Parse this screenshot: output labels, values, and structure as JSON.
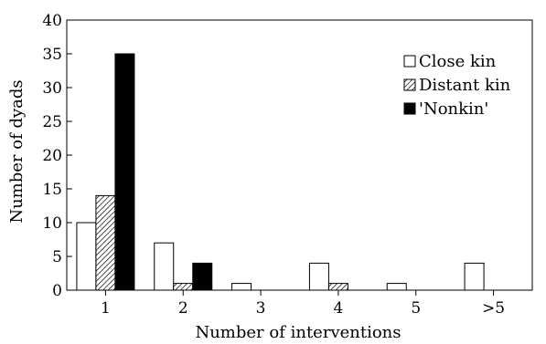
{
  "chart_data": {
    "type": "bar",
    "xlabel": "Number of interventions",
    "ylabel": "Number of dyads",
    "ylim": [
      0,
      40
    ],
    "yticks": [
      0,
      5,
      10,
      15,
      20,
      25,
      30,
      35,
      40
    ],
    "categories": [
      "1",
      "2",
      "3",
      "4",
      "5",
      ">5"
    ],
    "series": [
      {
        "name": "Close kin",
        "pattern": "open",
        "color": "#ffffff",
        "values": [
          10,
          7,
          1,
          4,
          1,
          4
        ]
      },
      {
        "name": "Distant kin",
        "pattern": "hatched",
        "color": "#ffffff",
        "values": [
          14,
          1,
          0,
          1,
          0,
          0
        ]
      },
      {
        "name": "'Nonkin'",
        "pattern": "solid",
        "color": "#000000",
        "values": [
          35,
          4,
          0,
          0,
          0,
          0
        ]
      }
    ],
    "legend_position": "top-right",
    "grid": false
  }
}
